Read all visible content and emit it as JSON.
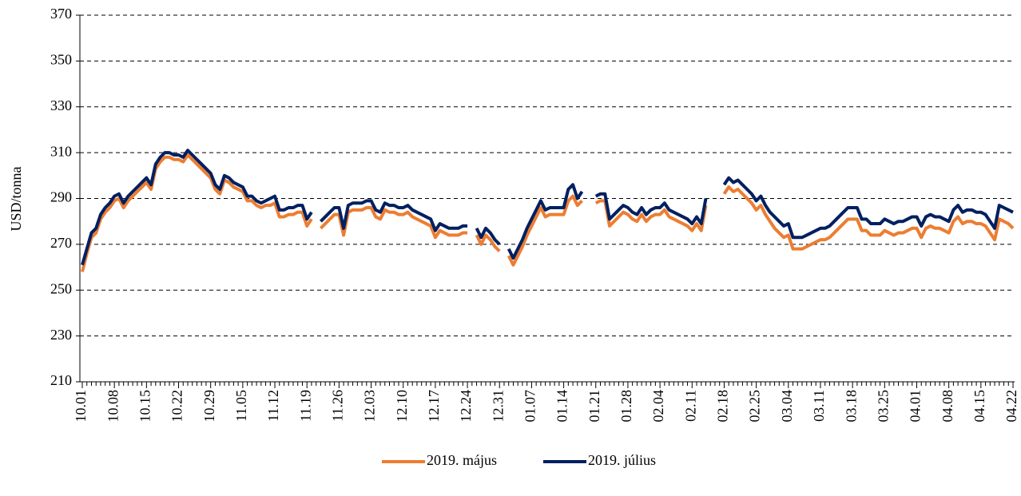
{
  "chart_data": {
    "type": "line",
    "y_label": "USD/tonna",
    "categories": [
      "10.01",
      null,
      null,
      null,
      null,
      null,
      null,
      "10.08",
      null,
      null,
      null,
      null,
      null,
      null,
      "10.15",
      null,
      null,
      null,
      null,
      null,
      null,
      "10.22",
      null,
      null,
      null,
      null,
      null,
      null,
      "10.29",
      null,
      null,
      null,
      null,
      null,
      null,
      "11.05",
      null,
      null,
      null,
      null,
      null,
      null,
      "11.12",
      null,
      null,
      null,
      null,
      null,
      null,
      "11.19",
      null,
      null,
      null,
      null,
      null,
      null,
      "11.26",
      null,
      null,
      null,
      null,
      null,
      null,
      "12.03",
      null,
      null,
      null,
      null,
      null,
      null,
      "12.10",
      null,
      null,
      null,
      null,
      null,
      null,
      "12.17",
      null,
      null,
      null,
      null,
      null,
      null,
      "12.24",
      null,
      null,
      null,
      null,
      null,
      null,
      "12.31",
      null,
      null,
      null,
      null,
      null,
      null,
      "01.07",
      null,
      null,
      null,
      null,
      null,
      null,
      "01.14",
      null,
      null,
      null,
      null,
      null,
      null,
      "01.21",
      null,
      null,
      null,
      null,
      null,
      null,
      "01.28",
      null,
      null,
      null,
      null,
      null,
      null,
      "02.04",
      null,
      null,
      null,
      null,
      null,
      null,
      "02.11",
      null,
      null,
      null,
      null,
      null,
      null,
      "02.18",
      null,
      null,
      null,
      null,
      null,
      null,
      "02.25",
      null,
      null,
      null,
      null,
      null,
      null,
      "03.04",
      null,
      null,
      null,
      null,
      null,
      null,
      "03.11",
      null,
      null,
      null,
      null,
      null,
      null,
      "03.18",
      null,
      null,
      null,
      null,
      null,
      null,
      "03.25",
      null,
      null,
      null,
      null,
      null,
      null,
      "04.01",
      null,
      null,
      null,
      null,
      null,
      null,
      "04.08",
      null,
      null,
      null,
      null,
      null,
      null,
      "04.15",
      null,
      null,
      null,
      null,
      null,
      null,
      "04.22"
    ],
    "series": [
      {
        "name": "2019. május",
        "color": "#ED7D31",
        "values": [
          258,
          266,
          273,
          275,
          281,
          284,
          286,
          289,
          290,
          286,
          289,
          291,
          293,
          295,
          297,
          294,
          303,
          306,
          308,
          308,
          307,
          307,
          306,
          309,
          307,
          305,
          303,
          301,
          299,
          294,
          292,
          298,
          297,
          295,
          294,
          293,
          289,
          289,
          287,
          286,
          287,
          287,
          288,
          282,
          282,
          283,
          283,
          284,
          284,
          278,
          281,
          null,
          277,
          279,
          281,
          283,
          283,
          274,
          284,
          285,
          285,
          285,
          286,
          286,
          282,
          281,
          285,
          284,
          284,
          283,
          283,
          284,
          282,
          281,
          280,
          279,
          278,
          273,
          276,
          275,
          274,
          274,
          274,
          275,
          275,
          null,
          274,
          270,
          274,
          272,
          269,
          267,
          null,
          265,
          261,
          265,
          269,
          274,
          278,
          282,
          286,
          282,
          283,
          283,
          283,
          283,
          289,
          291,
          287,
          289,
          null,
          null,
          288,
          289,
          289,
          278,
          280,
          282,
          284,
          283,
          281,
          280,
          283,
          280,
          282,
          283,
          283,
          285,
          282,
          281,
          280,
          279,
          278,
          276,
          279,
          276,
          287,
          null,
          null,
          null,
          292,
          295,
          293,
          294,
          292,
          290,
          288,
          285,
          287,
          283,
          280,
          277,
          275,
          273,
          274,
          268,
          268,
          268,
          269,
          270,
          271,
          272,
          272,
          273,
          275,
          277,
          279,
          281,
          281,
          281,
          276,
          276,
          274,
          274,
          274,
          276,
          275,
          274,
          275,
          275,
          276,
          277,
          277,
          273,
          277,
          278,
          277,
          277,
          276,
          275,
          280,
          282,
          279,
          280,
          280,
          279,
          279,
          278,
          275,
          272,
          281,
          280,
          279,
          277
        ]
      },
      {
        "name": "2019. július",
        "color": "#002060",
        "values": [
          261,
          268,
          275,
          277,
          283,
          286,
          288,
          291,
          292,
          288,
          291,
          293,
          295,
          297,
          299,
          296,
          305,
          308,
          310,
          310,
          309,
          309,
          308,
          311,
          309,
          307,
          305,
          303,
          301,
          296,
          294,
          300,
          299,
          297,
          296,
          295,
          291,
          291,
          289,
          288,
          289,
          290,
          291,
          285,
          285,
          286,
          286,
          287,
          287,
          281,
          284,
          null,
          280,
          282,
          284,
          286,
          286,
          277,
          287,
          288,
          288,
          288,
          289,
          289,
          285,
          284,
          288,
          287,
          287,
          286,
          286,
          287,
          285,
          284,
          283,
          282,
          281,
          276,
          279,
          278,
          277,
          277,
          277,
          278,
          278,
          null,
          277,
          273,
          277,
          275,
          272,
          270,
          null,
          268,
          264,
          268,
          272,
          277,
          281,
          285,
          289,
          285,
          286,
          286,
          286,
          286,
          294,
          296,
          290,
          293,
          null,
          null,
          291,
          292,
          292,
          281,
          283,
          285,
          287,
          286,
          284,
          283,
          286,
          283,
          285,
          286,
          286,
          288,
          285,
          284,
          283,
          282,
          281,
          279,
          282,
          279,
          290,
          null,
          null,
          null,
          296,
          299,
          297,
          298,
          296,
          294,
          292,
          289,
          291,
          287,
          284,
          282,
          280,
          278,
          279,
          273,
          273,
          273,
          274,
          275,
          276,
          277,
          277,
          278,
          280,
          282,
          284,
          286,
          286,
          286,
          281,
          281,
          279,
          279,
          279,
          281,
          280,
          279,
          280,
          280,
          281,
          282,
          282,
          278,
          282,
          283,
          282,
          282,
          281,
          280,
          285,
          287,
          284,
          285,
          285,
          284,
          284,
          283,
          280,
          277,
          287,
          286,
          285,
          284
        ]
      }
    ],
    "ylim": [
      210,
      370
    ],
    "yticks": [
      210,
      230,
      250,
      270,
      290,
      310,
      330,
      350,
      370
    ],
    "grid": true
  }
}
